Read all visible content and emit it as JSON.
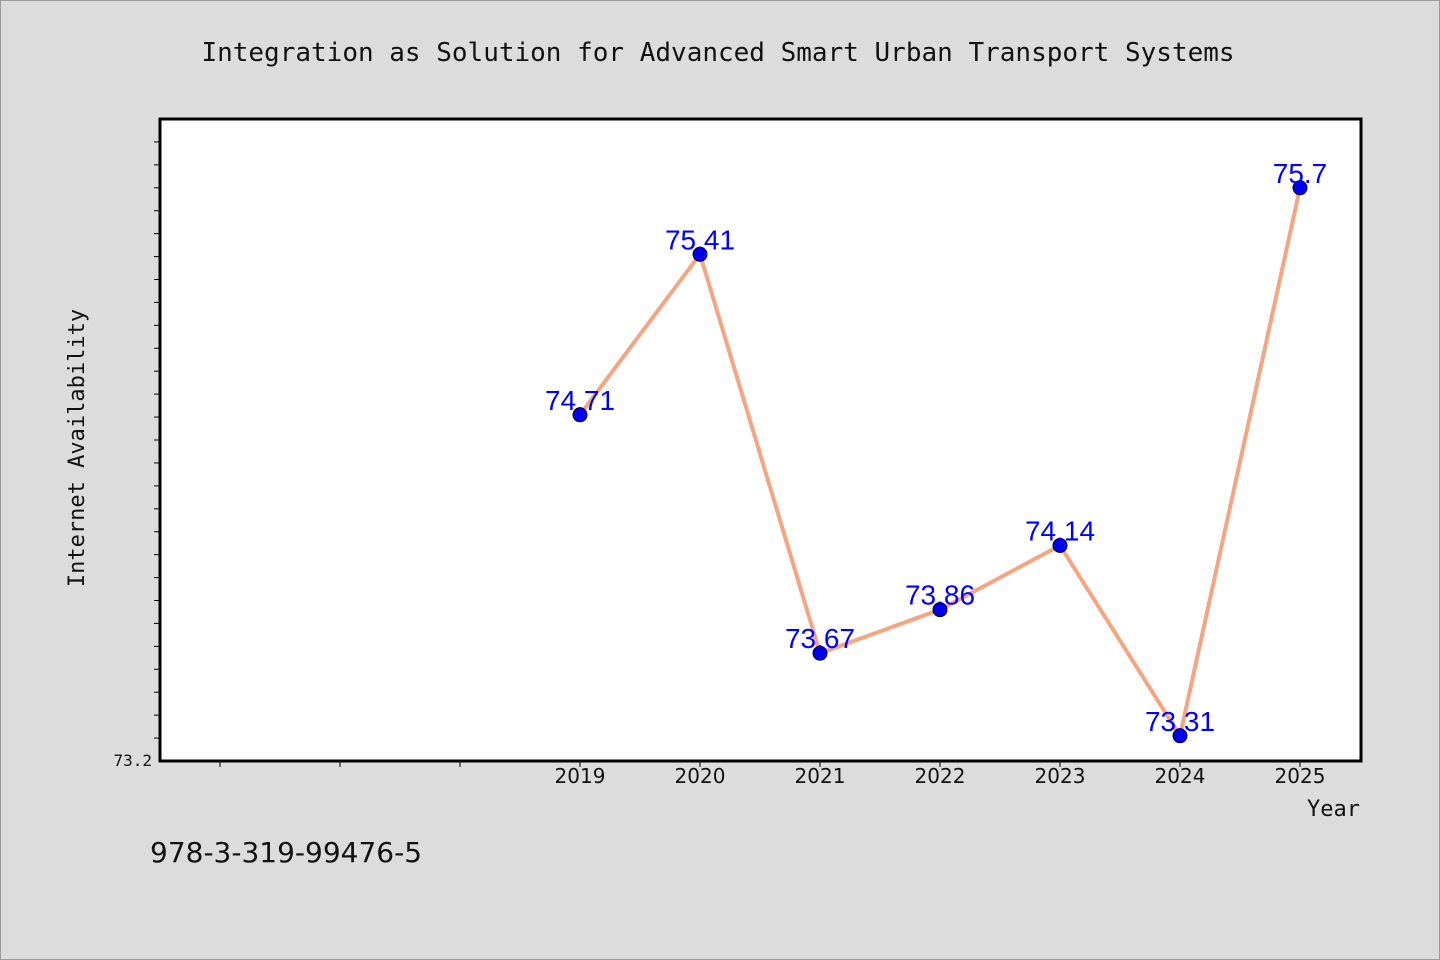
{
  "chart_data": {
    "type": "line",
    "title": "Integration as Solution for Advanced Smart Urban Transport Systems",
    "xlabel": "Year",
    "ylabel": "Internet Availability",
    "x": [
      "2019",
      "2020",
      "2021",
      "2022",
      "2023",
      "2024",
      "2025"
    ],
    "series": [
      {
        "values": [
          74.71,
          75.41,
          73.67,
          73.86,
          74.14,
          73.31,
          75.7
        ]
      }
    ],
    "data_labels": [
      "74.71",
      "75.41",
      "73.67",
      "73.86",
      "74.14",
      "73.31",
      "75.7"
    ],
    "x_range_categories": [
      "",
      "",
      "",
      "2019",
      "2020",
      "2021",
      "2022",
      "2023",
      "2024",
      "2025"
    ],
    "ylim": [
      73.2,
      76.0
    ],
    "y_min_label": "73.2",
    "y_minor_tick_step": 0.1,
    "grid": false,
    "legend": "none",
    "colors": {
      "line": "#f4a582",
      "marker": "#0000ee",
      "label": "#0000ff",
      "background": "#dcdcdc",
      "plot_background": "#ffffff"
    }
  },
  "annotation": "978-3-319-99476-5"
}
